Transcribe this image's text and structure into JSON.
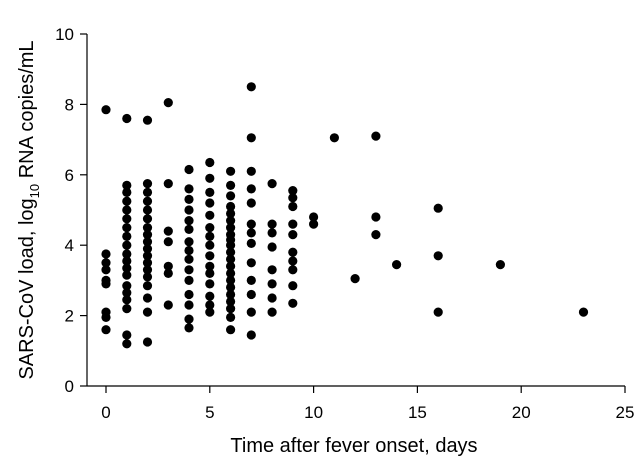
{
  "chart_data": {
    "type": "scatter",
    "xlabel": "Time after fever onset, days",
    "ylabel_parts": {
      "before": "SARS-CoV load, log",
      "sub": "10",
      "after": " RNA copies/mL"
    },
    "xlim": [
      0,
      25
    ],
    "ylim": [
      0,
      10
    ],
    "xticks": [
      0,
      5,
      10,
      15,
      20,
      25
    ],
    "yticks": [
      0,
      2,
      4,
      6,
      8,
      10
    ],
    "grid": false,
    "points": [
      [
        0,
        7.85
      ],
      [
        0,
        3.75
      ],
      [
        0,
        3.5
      ],
      [
        0,
        3.3
      ],
      [
        0,
        3.0
      ],
      [
        0,
        2.9
      ],
      [
        0,
        2.1
      ],
      [
        0,
        1.95
      ],
      [
        0,
        1.6
      ],
      [
        1,
        7.6
      ],
      [
        1,
        5.7
      ],
      [
        1,
        5.5
      ],
      [
        1,
        5.25
      ],
      [
        1,
        5.0
      ],
      [
        1,
        4.75
      ],
      [
        1,
        4.5
      ],
      [
        1,
        4.25
      ],
      [
        1,
        4.0
      ],
      [
        1,
        3.75
      ],
      [
        1,
        3.55
      ],
      [
        1,
        3.35
      ],
      [
        1,
        3.15
      ],
      [
        1,
        2.85
      ],
      [
        1,
        2.65
      ],
      [
        1,
        2.45
      ],
      [
        1,
        2.2
      ],
      [
        1,
        1.45
      ],
      [
        1,
        1.2
      ],
      [
        2,
        7.55
      ],
      [
        2,
        5.75
      ],
      [
        2,
        5.5
      ],
      [
        2,
        5.25
      ],
      [
        2,
        5.0
      ],
      [
        2,
        4.75
      ],
      [
        2,
        4.5
      ],
      [
        2,
        4.3
      ],
      [
        2,
        4.1
      ],
      [
        2,
        3.9
      ],
      [
        2,
        3.7
      ],
      [
        2,
        3.5
      ],
      [
        2,
        3.3
      ],
      [
        2,
        3.1
      ],
      [
        2,
        2.85
      ],
      [
        2,
        2.5
      ],
      [
        2,
        2.1
      ],
      [
        2,
        1.25
      ],
      [
        3,
        8.05
      ],
      [
        3,
        5.75
      ],
      [
        3,
        4.4
      ],
      [
        3,
        4.1
      ],
      [
        3,
        3.4
      ],
      [
        3,
        3.2
      ],
      [
        3,
        2.3
      ],
      [
        4,
        6.15
      ],
      [
        4,
        5.6
      ],
      [
        4,
        5.3
      ],
      [
        4,
        5.0
      ],
      [
        4,
        4.7
      ],
      [
        4,
        4.45
      ],
      [
        4,
        4.1
      ],
      [
        4,
        3.85
      ],
      [
        4,
        3.6
      ],
      [
        4,
        3.3
      ],
      [
        4,
        3.0
      ],
      [
        4,
        2.6
      ],
      [
        4,
        2.3
      ],
      [
        4,
        1.9
      ],
      [
        4,
        1.65
      ],
      [
        5,
        6.35
      ],
      [
        5,
        5.9
      ],
      [
        5,
        5.5
      ],
      [
        5,
        5.2
      ],
      [
        5,
        4.85
      ],
      [
        5,
        4.5
      ],
      [
        5,
        4.25
      ],
      [
        5,
        4.0
      ],
      [
        5,
        3.7
      ],
      [
        5,
        3.4
      ],
      [
        5,
        3.2
      ],
      [
        5,
        2.9
      ],
      [
        5,
        2.55
      ],
      [
        5,
        2.3
      ],
      [
        5,
        2.1
      ],
      [
        6,
        6.1
      ],
      [
        6,
        5.7
      ],
      [
        6,
        5.4
      ],
      [
        6,
        5.1
      ],
      [
        6,
        4.9
      ],
      [
        6,
        4.7
      ],
      [
        6,
        4.5
      ],
      [
        6,
        4.3
      ],
      [
        6,
        4.15
      ],
      [
        6,
        4.0
      ],
      [
        6,
        3.8
      ],
      [
        6,
        3.6
      ],
      [
        6,
        3.4
      ],
      [
        6,
        3.2
      ],
      [
        6,
        3.0
      ],
      [
        6,
        2.8
      ],
      [
        6,
        2.6
      ],
      [
        6,
        2.4
      ],
      [
        6,
        2.2
      ],
      [
        6,
        1.95
      ],
      [
        6,
        1.6
      ],
      [
        7,
        8.5
      ],
      [
        7,
        7.05
      ],
      [
        7,
        6.1
      ],
      [
        7,
        5.6
      ],
      [
        7,
        5.2
      ],
      [
        7,
        4.6
      ],
      [
        7,
        4.35
      ],
      [
        7,
        4.05
      ],
      [
        7,
        3.5
      ],
      [
        7,
        3.0
      ],
      [
        7,
        2.6
      ],
      [
        7,
        2.1
      ],
      [
        7,
        1.45
      ],
      [
        8,
        5.75
      ],
      [
        8,
        4.6
      ],
      [
        8,
        4.35
      ],
      [
        8,
        3.95
      ],
      [
        8,
        3.3
      ],
      [
        8,
        2.9
      ],
      [
        8,
        2.5
      ],
      [
        8,
        2.1
      ],
      [
        9,
        5.55
      ],
      [
        9,
        5.35
      ],
      [
        9,
        5.1
      ],
      [
        9,
        4.6
      ],
      [
        9,
        4.3
      ],
      [
        9,
        3.8
      ],
      [
        9,
        3.55
      ],
      [
        9,
        3.3
      ],
      [
        9,
        2.85
      ],
      [
        9,
        2.35
      ],
      [
        10,
        4.8
      ],
      [
        10,
        4.6
      ],
      [
        11,
        7.05
      ],
      [
        12,
        3.05
      ],
      [
        13,
        7.1
      ],
      [
        13,
        4.8
      ],
      [
        13,
        4.3
      ],
      [
        14,
        3.45
      ],
      [
        16,
        5.05
      ],
      [
        16,
        3.7
      ],
      [
        16,
        2.1
      ],
      [
        19,
        3.45
      ],
      [
        23,
        2.1
      ]
    ]
  }
}
